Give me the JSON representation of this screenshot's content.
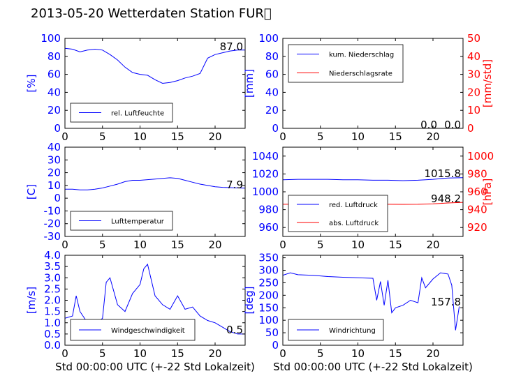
{
  "title": "2013-05-20 Wetterdaten Station FUR\u0000",
  "colors": {
    "left_axis": "#0000ff",
    "right_axis": "#ff0000",
    "frame": "#000000",
    "text": "#000000"
  },
  "chart_data": [
    {
      "type": "line",
      "ylabel": "[%]",
      "xlim": [
        0,
        24
      ],
      "xticks": [
        0,
        5,
        10,
        15,
        20
      ],
      "ylim": [
        0,
        100
      ],
      "yticks": [
        0,
        20,
        40,
        60,
        80,
        100
      ],
      "x": [
        0,
        1,
        2,
        3,
        4,
        5,
        6,
        7,
        8,
        9,
        10,
        11,
        12,
        13,
        14,
        15,
        16,
        17,
        18,
        19,
        20,
        21,
        22,
        23,
        24
      ],
      "series": [
        {
          "name": "rel. Luftfeuchte",
          "color": "#0000ff",
          "values": [
            89,
            88,
            85,
            87,
            88,
            87,
            82,
            76,
            68,
            62,
            60,
            59,
            54,
            50,
            51,
            53,
            56,
            58,
            61,
            78,
            82,
            84,
            86,
            87,
            87
          ]
        }
      ],
      "readout": "87.0",
      "legend_position": "lower-left"
    },
    {
      "type": "line",
      "ylabel": "[mm]",
      "ylabel_right": "[mm/std]",
      "xlim": [
        0,
        24
      ],
      "xticks": [
        0,
        5,
        10,
        15,
        20
      ],
      "ylim": [
        0,
        100
      ],
      "yticks": [
        0,
        20,
        40,
        60,
        80,
        100
      ],
      "ylim_right": [
        0,
        50
      ],
      "yticks_right": [
        0,
        10,
        20,
        30,
        40,
        50
      ],
      "x": [
        0,
        24
      ],
      "series": [
        {
          "name": "kum. Niederschlag",
          "color": "#0000ff",
          "values": [
            0,
            0
          ]
        },
        {
          "name": "Niederschlagsrate",
          "color": "#ff0000",
          "axis": "right",
          "values": [
            0,
            0
          ]
        }
      ],
      "readout": "0.0",
      "readout_right": "0.0",
      "legend_position": "top-left"
    },
    {
      "type": "line",
      "ylabel": "[C]",
      "xlim": [
        0,
        24
      ],
      "xticks": [
        0,
        5,
        10,
        15,
        20
      ],
      "ylim": [
        -30,
        40
      ],
      "yticks": [
        -30,
        -20,
        -10,
        0,
        10,
        20,
        30,
        40
      ],
      "x": [
        0,
        1,
        2,
        3,
        4,
        5,
        6,
        7,
        8,
        9,
        10,
        11,
        12,
        13,
        14,
        15,
        16,
        17,
        18,
        19,
        20,
        21,
        22,
        23,
        24
      ],
      "series": [
        {
          "name": "Lufttemperatur",
          "color": "#0000ff",
          "values": [
            7,
            7,
            6.5,
            6.5,
            7,
            8,
            9.5,
            11,
            13,
            14,
            14,
            14.5,
            15,
            15.5,
            16,
            15.5,
            14,
            12.5,
            11,
            10,
            9,
            8.5,
            8.3,
            8,
            7.9
          ]
        }
      ],
      "readout": "7.9",
      "legend_position": "lower-left"
    },
    {
      "type": "line",
      "ylabel": "",
      "ylabel_right": "[hPa]",
      "xlim": [
        0,
        24
      ],
      "xticks": [
        0,
        5,
        10,
        15,
        20
      ],
      "ylim": [
        950,
        1050
      ],
      "yticks": [
        960,
        980,
        1000,
        1020,
        1040
      ],
      "ylim_right": [
        910,
        1010
      ],
      "yticks_right": [
        920,
        940,
        960,
        980,
        1000
      ],
      "x": [
        0,
        2,
        4,
        6,
        8,
        10,
        12,
        14,
        16,
        18,
        20,
        22,
        24
      ],
      "series": [
        {
          "name": "red. Luftdruck",
          "color": "#0000ff",
          "values": [
            1013.5,
            1014,
            1014,
            1014,
            1013.5,
            1013.5,
            1013,
            1013,
            1012.5,
            1013,
            1014,
            1015.5,
            1015.8
          ]
        },
        {
          "name": "abs. Luftdruck",
          "color": "#ff0000",
          "axis": "right",
          "values": [
            946,
            946.2,
            946.3,
            946.3,
            946.3,
            946.2,
            946,
            946,
            945.9,
            946,
            946.5,
            947.5,
            948.2
          ]
        }
      ],
      "readout": "1015.8",
      "readout_right": "948.2",
      "legend_position": "lower-left"
    },
    {
      "type": "line",
      "ylabel": "[m/s]",
      "xlabel": "Std 00:00:00 UTC (+-22 Std Lokalzeit)",
      "xlim": [
        0,
        24
      ],
      "xticks": [
        0,
        5,
        10,
        15,
        20
      ],
      "ylim": [
        0,
        4
      ],
      "yticks": [
        0,
        0.5,
        1.0,
        1.5,
        2.0,
        2.5,
        3.0,
        3.5,
        4.0
      ],
      "x": [
        0,
        1,
        1.5,
        2,
        3,
        4,
        5,
        5.5,
        6,
        7,
        8,
        9,
        10,
        10.5,
        11,
        12,
        13,
        14,
        15,
        16,
        17,
        18,
        19,
        20,
        21,
        22,
        23,
        24
      ],
      "series": [
        {
          "name": "Windgeschwindigkeit",
          "color": "#0000ff",
          "values": [
            1.2,
            1.3,
            2.2,
            1.5,
            1.0,
            0.9,
            1.2,
            2.8,
            3.0,
            1.8,
            1.5,
            2.3,
            2.7,
            3.4,
            3.6,
            2.2,
            1.8,
            1.6,
            2.2,
            1.6,
            1.7,
            1.3,
            1.1,
            1.0,
            0.8,
            0.6,
            0.5,
            0.5
          ]
        }
      ],
      "readout": "0.5",
      "legend_position": "lower-left"
    },
    {
      "type": "line",
      "ylabel": "[deg]",
      "xlabel": "Std 00:00:00 UTC (+-22 Std Lokalzeit)",
      "xlim": [
        0,
        24
      ],
      "xticks": [
        0,
        5,
        10,
        15,
        20
      ],
      "ylim": [
        0,
        360
      ],
      "yticks": [
        0,
        50,
        100,
        150,
        200,
        250,
        300,
        350
      ],
      "x": [
        0,
        1,
        2,
        4,
        6,
        8,
        10,
        12,
        12.5,
        13,
        13.5,
        14,
        14.5,
        15,
        16,
        17,
        18,
        18.5,
        19,
        20,
        21,
        22,
        22.5,
        23,
        23.5
      ],
      "series": [
        {
          "name": "Windrichtung",
          "color": "#0000ff",
          "values": [
            280,
            290,
            282,
            280,
            275,
            272,
            270,
            268,
            180,
            255,
            160,
            260,
            130,
            150,
            160,
            180,
            170,
            270,
            230,
            265,
            290,
            285,
            240,
            60,
            155
          ]
        }
      ],
      "readout": "157.8",
      "legend_position": "lower-left"
    }
  ]
}
